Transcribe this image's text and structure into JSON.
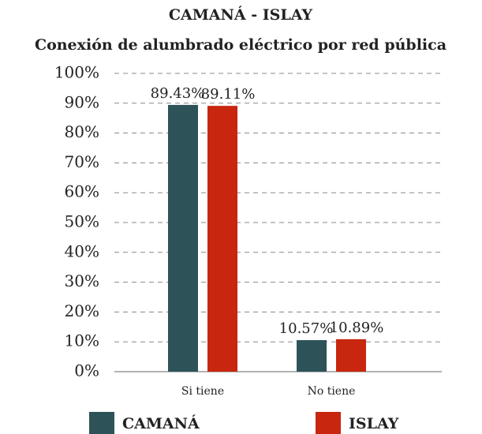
{
  "chart_data": {
    "type": "bar",
    "title": "CAMANÁ - ISLAY",
    "subtitle": "Conexión de alumbrado eléctrico por red pública",
    "categories": [
      "Si tiene",
      "No tiene"
    ],
    "series": [
      {
        "name": "CAMANÁ",
        "color": "#2d5358",
        "values": [
          89.43,
          10.57
        ],
        "value_labels": [
          "89.43%",
          "10.57%"
        ]
      },
      {
        "name": "ISLAY",
        "color": "#c8260f",
        "values": [
          89.11,
          10.89
        ],
        "value_labels": [
          "89.11%",
          "10.89%"
        ]
      }
    ],
    "ylim": [
      0,
      100
    ],
    "yticks": [
      {
        "value": 0,
        "label": "0%"
      },
      {
        "value": 10,
        "label": "10%"
      },
      {
        "value": 20,
        "label": "20%"
      },
      {
        "value": 30,
        "label": "30%"
      },
      {
        "value": 40,
        "label": "40%"
      },
      {
        "value": 50,
        "label": "50%"
      },
      {
        "value": 60,
        "label": "60%"
      },
      {
        "value": 70,
        "label": "70%"
      },
      {
        "value": 80,
        "label": "80%"
      },
      {
        "value": 90,
        "label": "90%"
      },
      {
        "value": 100,
        "label": "100%"
      }
    ],
    "grid": true,
    "legend": "bottom"
  }
}
